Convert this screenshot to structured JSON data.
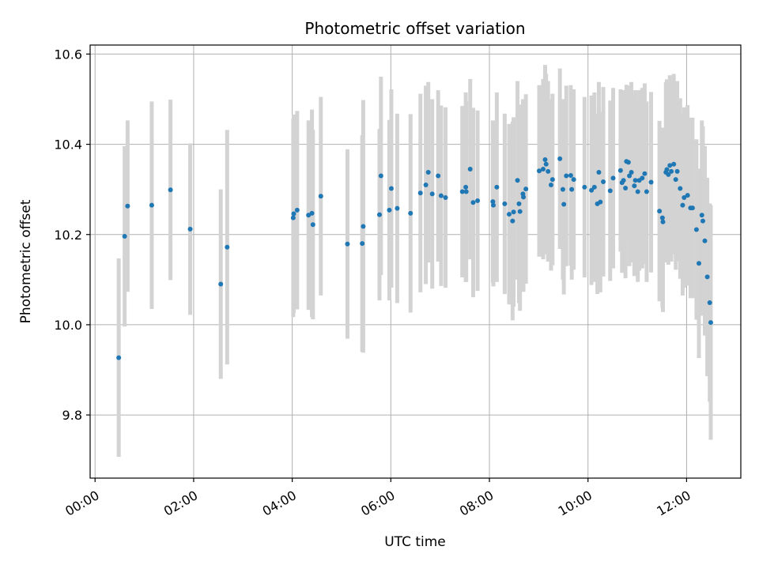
{
  "chart_data": {
    "type": "scatter",
    "title": "Photometric offset variation",
    "xlabel": "UTC time",
    "ylabel": "Photometric offset",
    "x_unit": "hours",
    "xlim": [
      -0.1,
      13.1
    ],
    "ylim": [
      9.66,
      10.62
    ],
    "x_ticks": [
      {
        "value": 0,
        "label": "00:00"
      },
      {
        "value": 2,
        "label": "02:00"
      },
      {
        "value": 4,
        "label": "04:00"
      },
      {
        "value": 6,
        "label": "06:00"
      },
      {
        "value": 8,
        "label": "08:00"
      },
      {
        "value": 10,
        "label": "10:00"
      },
      {
        "value": 12,
        "label": "12:00"
      }
    ],
    "y_ticks": [
      {
        "value": 9.8,
        "label": "9.8"
      },
      {
        "value": 10.0,
        "label": "10.0"
      },
      {
        "value": 10.2,
        "label": "10.2"
      },
      {
        "value": 10.4,
        "label": "10.4"
      },
      {
        "value": 10.6,
        "label": "10.6"
      }
    ],
    "grid": true,
    "colors": {
      "point": "#1f77b4",
      "errorbar": "#d3d3d3",
      "grid": "#b0b0b0"
    },
    "points": [
      [
        0.48,
        9.927,
        0.22
      ],
      [
        0.6,
        10.196,
        0.2
      ],
      [
        0.66,
        10.263,
        0.19
      ],
      [
        1.15,
        10.265,
        0.23
      ],
      [
        1.53,
        10.299,
        0.2
      ],
      [
        1.93,
        10.212,
        0.19
      ],
      [
        2.55,
        10.09,
        0.21
      ],
      [
        2.68,
        10.172,
        0.26
      ],
      [
        4.02,
        10.237,
        0.22
      ],
      [
        4.03,
        10.246,
        0.22
      ],
      [
        4.1,
        10.254,
        0.22
      ],
      [
        4.33,
        10.243,
        0.21
      ],
      [
        4.4,
        10.247,
        0.23
      ],
      [
        4.42,
        10.222,
        0.21
      ],
      [
        4.58,
        10.285,
        0.22
      ],
      [
        5.12,
        10.179,
        0.21
      ],
      [
        5.42,
        10.18,
        0.24
      ],
      [
        5.44,
        10.218,
        0.28
      ],
      [
        5.77,
        10.244,
        0.19
      ],
      [
        5.8,
        10.33,
        0.22
      ],
      [
        5.97,
        10.254,
        0.2
      ],
      [
        6.01,
        10.302,
        0.22
      ],
      [
        6.13,
        10.258,
        0.21
      ],
      [
        6.4,
        10.247,
        0.22
      ],
      [
        6.6,
        10.292,
        0.22
      ],
      [
        6.71,
        10.31,
        0.22
      ],
      [
        6.76,
        10.338,
        0.2
      ],
      [
        6.84,
        10.29,
        0.21
      ],
      [
        6.96,
        10.33,
        0.19
      ],
      [
        7.02,
        10.286,
        0.2
      ],
      [
        7.11,
        10.282,
        0.2
      ],
      [
        7.45,
        10.295,
        0.19
      ],
      [
        7.52,
        10.305,
        0.21
      ],
      [
        7.53,
        10.295,
        0.2
      ],
      [
        7.61,
        10.345,
        0.2
      ],
      [
        7.67,
        10.271,
        0.21
      ],
      [
        7.76,
        10.275,
        0.2
      ],
      [
        8.07,
        10.273,
        0.18
      ],
      [
        8.08,
        10.265,
        0.18
      ],
      [
        8.15,
        10.305,
        0.21
      ],
      [
        8.31,
        10.268,
        0.2
      ],
      [
        8.4,
        10.245,
        0.2
      ],
      [
        8.47,
        10.23,
        0.22
      ],
      [
        8.49,
        10.25,
        0.21
      ],
      [
        8.57,
        10.32,
        0.22
      ],
      [
        8.6,
        10.268,
        0.22
      ],
      [
        8.62,
        10.251,
        0.22
      ],
      [
        8.68,
        10.29,
        0.21
      ],
      [
        8.69,
        10.283,
        0.21
      ],
      [
        8.74,
        10.301,
        0.21
      ],
      [
        9.01,
        10.341,
        0.19
      ],
      [
        9.09,
        10.345,
        0.2
      ],
      [
        9.13,
        10.366,
        0.21
      ],
      [
        9.15,
        10.356,
        0.2
      ],
      [
        9.19,
        10.34,
        0.2
      ],
      [
        9.25,
        10.31,
        0.19
      ],
      [
        9.28,
        10.322,
        0.19
      ],
      [
        9.43,
        10.368,
        0.2
      ],
      [
        9.49,
        10.3,
        0.2
      ],
      [
        9.51,
        10.267,
        0.2
      ],
      [
        9.56,
        10.33,
        0.2
      ],
      [
        9.65,
        10.331,
        0.2
      ],
      [
        9.67,
        10.3,
        0.2
      ],
      [
        9.71,
        10.322,
        0.2
      ],
      [
        9.93,
        10.305,
        0.2
      ],
      [
        10.07,
        10.298,
        0.21
      ],
      [
        10.13,
        10.305,
        0.21
      ],
      [
        10.19,
        10.268,
        0.2
      ],
      [
        10.22,
        10.338,
        0.2
      ],
      [
        10.25,
        10.272,
        0.2
      ],
      [
        10.31,
        10.317,
        0.21
      ],
      [
        10.45,
        10.297,
        0.2
      ],
      [
        10.51,
        10.325,
        0.2
      ],
      [
        10.66,
        10.342,
        0.18
      ],
      [
        10.69,
        10.315,
        0.2
      ],
      [
        10.72,
        10.32,
        0.2
      ],
      [
        10.76,
        10.303,
        0.2
      ],
      [
        10.78,
        10.362,
        0.17
      ],
      [
        10.82,
        10.36,
        0.17
      ],
      [
        10.84,
        10.33,
        0.2
      ],
      [
        10.88,
        10.338,
        0.2
      ],
      [
        10.94,
        10.308,
        0.2
      ],
      [
        10.96,
        10.32,
        0.2
      ],
      [
        11.01,
        10.295,
        0.2
      ],
      [
        11.04,
        10.32,
        0.2
      ],
      [
        11.1,
        10.325,
        0.2
      ],
      [
        11.15,
        10.335,
        0.2
      ],
      [
        11.19,
        10.295,
        0.2
      ],
      [
        11.28,
        10.316,
        0.2
      ],
      [
        11.45,
        10.252,
        0.2
      ],
      [
        11.51,
        10.237,
        0.2
      ],
      [
        11.52,
        10.228,
        0.2
      ],
      [
        11.58,
        10.338,
        0.2
      ],
      [
        11.6,
        10.344,
        0.2
      ],
      [
        11.63,
        10.333,
        0.2
      ],
      [
        11.66,
        10.353,
        0.2
      ],
      [
        11.69,
        10.34,
        0.2
      ],
      [
        11.74,
        10.356,
        0.2
      ],
      [
        11.78,
        10.322,
        0.2
      ],
      [
        11.81,
        10.34,
        0.2
      ],
      [
        11.87,
        10.302,
        0.2
      ],
      [
        11.92,
        10.265,
        0.2
      ],
      [
        11.95,
        10.282,
        0.2
      ],
      [
        12.02,
        10.287,
        0.2
      ],
      [
        12.08,
        10.259,
        0.2
      ],
      [
        12.12,
        10.259,
        0.2
      ],
      [
        12.2,
        10.211,
        0.2
      ],
      [
        12.25,
        10.136,
        0.21
      ],
      [
        12.31,
        10.243,
        0.21
      ],
      [
        12.33,
        10.23,
        0.21
      ],
      [
        12.37,
        10.186,
        0.21
      ],
      [
        12.42,
        10.106,
        0.22
      ],
      [
        12.47,
        10.049,
        0.22
      ],
      [
        12.49,
        10.005,
        0.26
      ]
    ]
  }
}
